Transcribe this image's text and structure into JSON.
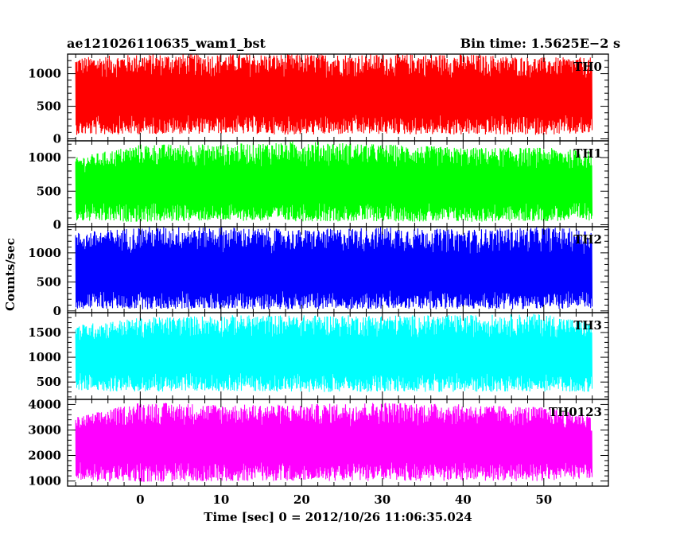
{
  "chart_data": {
    "type": "line",
    "title": "ae121026110635_wam1_bst",
    "subtitle": "Bin time: 1.5625E−2 s",
    "xlabel": "Time [sec] 0 = 2012/10/26 11:06:35.024",
    "ylabel": "Counts/sec",
    "xlim": [
      -9,
      58
    ],
    "x_ticks": [
      0,
      10,
      20,
      30,
      40,
      50
    ],
    "x_range": [
      -8,
      56
    ],
    "grid": false,
    "legend": "none",
    "series": [
      {
        "name": "TH0",
        "color": "#ff0000",
        "ylim": [
          -30,
          1300
        ],
        "yticks": [
          0,
          500,
          1000
        ],
        "envelope": [
          {
            "x": -8,
            "low": 60,
            "high": 1250
          },
          {
            "x": 0,
            "low": 70,
            "high": 1300
          },
          {
            "x": 10,
            "low": 80,
            "high": 1300
          },
          {
            "x": 20,
            "low": 60,
            "high": 1300
          },
          {
            "x": 30,
            "low": 70,
            "high": 1300
          },
          {
            "x": 40,
            "low": 60,
            "high": 1300
          },
          {
            "x": 50,
            "low": 60,
            "high": 1250
          },
          {
            "x": 56,
            "low": 70,
            "high": 1250
          }
        ],
        "mean": 620
      },
      {
        "name": "TH1",
        "color": "#00ff00",
        "ylim": [
          -30,
          1250
        ],
        "yticks": [
          0,
          500,
          1000
        ],
        "envelope": [
          {
            "x": -8,
            "low": 50,
            "high": 1000
          },
          {
            "x": 0,
            "low": 40,
            "high": 1200
          },
          {
            "x": 10,
            "low": 60,
            "high": 1200
          },
          {
            "x": 20,
            "low": 50,
            "high": 1250
          },
          {
            "x": 30,
            "low": 50,
            "high": 1200
          },
          {
            "x": 40,
            "low": 40,
            "high": 1150
          },
          {
            "x": 50,
            "low": 50,
            "high": 1150
          },
          {
            "x": 56,
            "low": 60,
            "high": 1100
          }
        ],
        "mean": 560
      },
      {
        "name": "TH2",
        "color": "#0000ff",
        "ylim": [
          -30,
          1450
        ],
        "yticks": [
          0,
          500,
          1000
        ],
        "envelope": [
          {
            "x": -8,
            "low": 40,
            "high": 1350
          },
          {
            "x": 0,
            "low": 30,
            "high": 1450
          },
          {
            "x": 10,
            "low": 30,
            "high": 1450
          },
          {
            "x": 20,
            "low": 30,
            "high": 1400
          },
          {
            "x": 30,
            "low": 30,
            "high": 1450
          },
          {
            "x": 40,
            "low": 30,
            "high": 1400
          },
          {
            "x": 50,
            "low": 30,
            "high": 1450
          },
          {
            "x": 56,
            "low": 40,
            "high": 1400
          }
        ],
        "mean": 620
      },
      {
        "name": "TH3",
        "color": "#00ffff",
        "ylim": [
          150,
          1900
        ],
        "yticks": [
          500,
          1000,
          1500
        ],
        "envelope": [
          {
            "x": -8,
            "low": 320,
            "high": 1650
          },
          {
            "x": 0,
            "low": 300,
            "high": 1800
          },
          {
            "x": 10,
            "low": 320,
            "high": 1850
          },
          {
            "x": 20,
            "low": 300,
            "high": 1850
          },
          {
            "x": 30,
            "low": 300,
            "high": 1850
          },
          {
            "x": 40,
            "low": 300,
            "high": 1850
          },
          {
            "x": 50,
            "low": 310,
            "high": 1880
          },
          {
            "x": 56,
            "low": 300,
            "high": 1700
          }
        ],
        "mean": 1000
      },
      {
        "name": "TH0123",
        "color": "#ff00ff",
        "ylim": [
          800,
          4200
        ],
        "yticks": [
          1000,
          2000,
          3000,
          4000
        ],
        "envelope": [
          {
            "x": -8,
            "low": 1000,
            "high": 3500
          },
          {
            "x": 0,
            "low": 950,
            "high": 4100
          },
          {
            "x": 10,
            "low": 1000,
            "high": 4000
          },
          {
            "x": 20,
            "low": 1000,
            "high": 4000
          },
          {
            "x": 30,
            "low": 1000,
            "high": 4100
          },
          {
            "x": 40,
            "low": 1000,
            "high": 4000
          },
          {
            "x": 50,
            "low": 1000,
            "high": 3900
          },
          {
            "x": 56,
            "low": 1100,
            "high": 3600
          }
        ],
        "mean": 2400
      }
    ]
  }
}
